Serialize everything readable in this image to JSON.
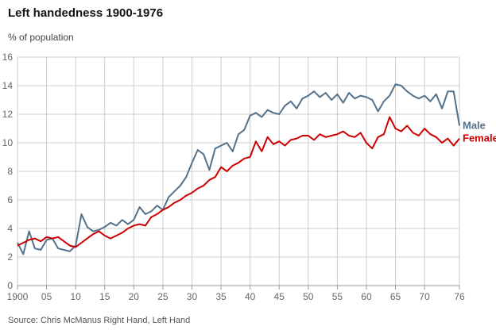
{
  "header": {
    "title": "Left handedness 1900-1976",
    "y_axis_caption": "% of population"
  },
  "footer": {
    "source": "Source: Chris McManus Right Hand, Left Hand"
  },
  "chart_data": {
    "type": "line",
    "title": "Left handedness 1900-1976",
    "ylabel": "% of population",
    "xlabel": "",
    "grid": true,
    "legend_position": "right-end-of-lines",
    "x_start": 1900,
    "x_end": 1976,
    "x_tick_years": [
      1900,
      1905,
      1910,
      1915,
      1920,
      1925,
      1930,
      1935,
      1940,
      1945,
      1950,
      1955,
      1960,
      1965,
      1970,
      1976
    ],
    "x_tick_labels": [
      "1900",
      "05",
      "10",
      "15",
      "20",
      "25",
      "30",
      "35",
      "40",
      "45",
      "50",
      "55",
      "60",
      "65",
      "70",
      "76"
    ],
    "ylim": [
      0,
      16
    ],
    "y_tick_step": 2,
    "colors": {
      "grid": "#cccccc",
      "axis": "#999999",
      "tick_text": "#666666",
      "male": "#54718c",
      "female": "#cc0000"
    },
    "series": [
      {
        "name": "Male",
        "color": "#54718c",
        "values": [
          3.0,
          2.2,
          3.8,
          2.6,
          2.5,
          3.2,
          3.3,
          2.6,
          2.5,
          2.4,
          2.8,
          5.0,
          4.1,
          3.8,
          3.9,
          4.1,
          4.4,
          4.2,
          4.6,
          4.3,
          4.6,
          5.5,
          5.0,
          5.2,
          5.6,
          5.3,
          6.2,
          6.6,
          7.0,
          7.6,
          8.6,
          9.5,
          9.2,
          8.1,
          9.6,
          9.8,
          10.0,
          9.4,
          10.6,
          10.9,
          11.9,
          12.1,
          11.8,
          12.3,
          12.1,
          12.0,
          12.6,
          12.9,
          12.4,
          13.1,
          13.3,
          13.6,
          13.2,
          13.5,
          13.0,
          13.4,
          12.8,
          13.5,
          13.1,
          13.3,
          13.2,
          13.0,
          12.2,
          12.9,
          13.3,
          14.1,
          14.0,
          13.6,
          13.3,
          13.1,
          13.3,
          12.9,
          13.4,
          12.4,
          13.6,
          13.6,
          11.2
        ]
      },
      {
        "name": "Female",
        "color": "#cc0000",
        "values": [
          2.8,
          3.0,
          3.2,
          3.3,
          3.1,
          3.4,
          3.3,
          3.4,
          3.1,
          2.8,
          2.7,
          3.0,
          3.3,
          3.6,
          3.8,
          3.5,
          3.3,
          3.5,
          3.7,
          4.0,
          4.2,
          4.3,
          4.2,
          4.8,
          5.0,
          5.3,
          5.5,
          5.8,
          6.0,
          6.3,
          6.5,
          6.8,
          7.0,
          7.4,
          7.6,
          8.3,
          8.0,
          8.4,
          8.6,
          8.9,
          9.0,
          10.1,
          9.4,
          10.4,
          9.9,
          10.1,
          9.8,
          10.2,
          10.3,
          10.5,
          10.5,
          10.2,
          10.6,
          10.4,
          10.5,
          10.6,
          10.8,
          10.5,
          10.4,
          10.7,
          10.0,
          9.6,
          10.4,
          10.6,
          11.8,
          11.0,
          10.8,
          11.2,
          10.7,
          10.5,
          11.0,
          10.6,
          10.4,
          10.0,
          10.3,
          9.8,
          10.3
        ]
      }
    ]
  }
}
